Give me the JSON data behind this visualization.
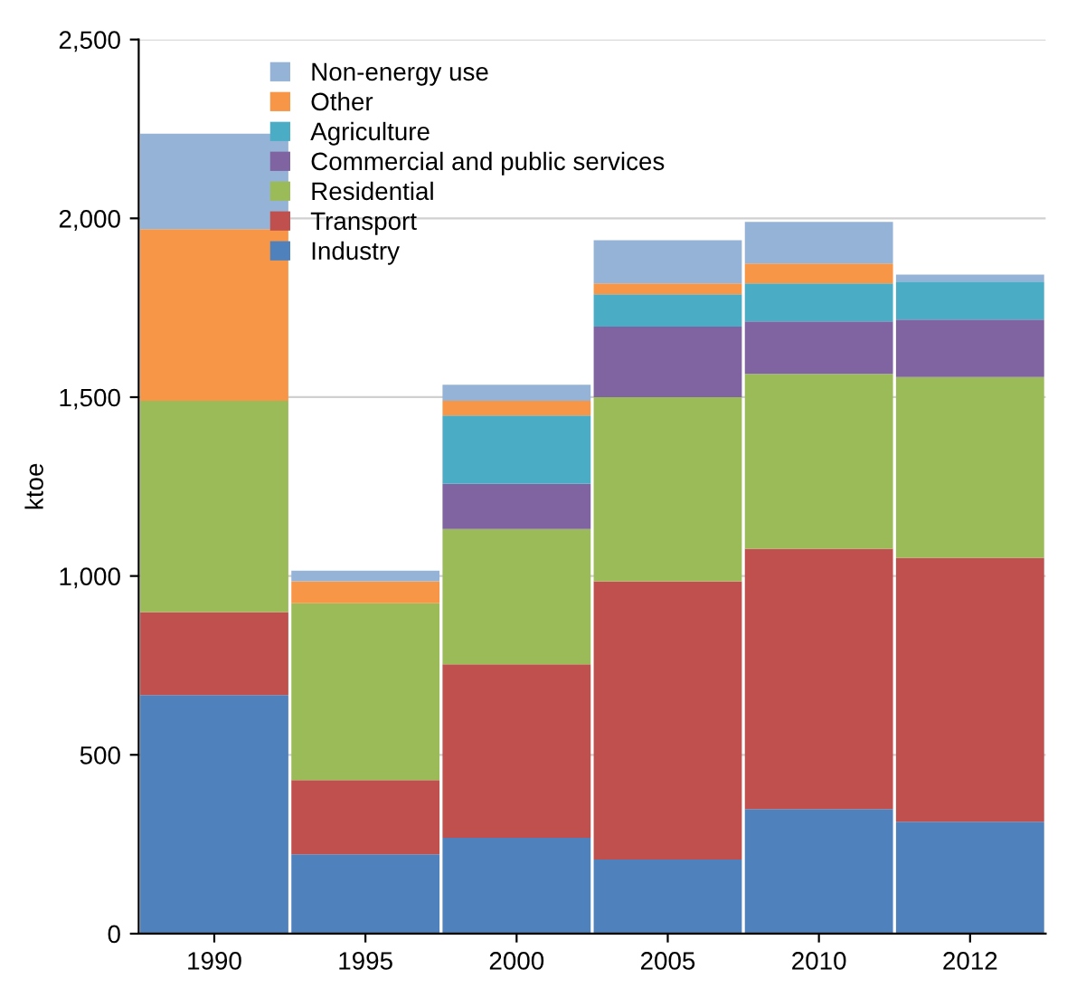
{
  "chart_data": {
    "type": "bar",
    "stacked": true,
    "ylabel": "ktoe",
    "categories": [
      "1990",
      "1995",
      "2000",
      "2005",
      "2010",
      "2012"
    ],
    "series": [
      {
        "name": "Industry",
        "color": "#4f81bd",
        "values": [
          667,
          222,
          268,
          207,
          348,
          313
        ]
      },
      {
        "name": "Transport",
        "color": "#c0504d",
        "values": [
          232,
          207,
          485,
          778,
          728,
          738
        ]
      },
      {
        "name": "Residential",
        "color": "#9bbb59",
        "values": [
          591,
          495,
          378,
          515,
          489,
          505
        ]
      },
      {
        "name": "Commercial and public services",
        "color": "#8064a2",
        "values": [
          0,
          0,
          127,
          197,
          147,
          161
        ]
      },
      {
        "name": "Agriculture",
        "color": "#4bacc6",
        "values": [
          0,
          0,
          191,
          91,
          106,
          106
        ]
      },
      {
        "name": "Other",
        "color": "#f79646",
        "values": [
          480,
          61,
          41,
          30,
          56,
          0
        ]
      },
      {
        "name": "Non-energy use",
        "color": "#95b3d7",
        "values": [
          267,
          30,
          45,
          121,
          116,
          20
        ]
      }
    ],
    "ylim": [
      0,
      2500
    ],
    "yticks": [
      0,
      500,
      {
        "value": 1000,
        "label": "1,000"
      },
      {
        "value": 1500,
        "label": "1,500"
      },
      {
        "value": 2000,
        "label": "2,000"
      },
      {
        "value": 2500,
        "label": "2,500"
      }
    ],
    "grid": "y",
    "legend": "top"
  }
}
